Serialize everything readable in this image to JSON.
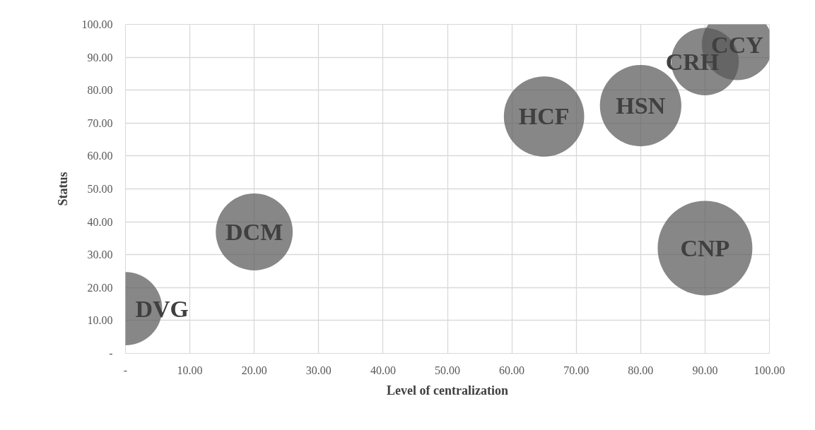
{
  "chart_data": {
    "type": "bubble",
    "xlabel": "Level of centralization",
    "ylabel": "Status",
    "x": [
      0,
      20,
      65,
      80,
      90,
      95,
      90
    ],
    "series": [
      {
        "color": "#595959",
        "values": [
          13.6,
          36.9,
          72,
          75.3,
          88.7,
          93.8,
          32
        ],
        "sizes": [
          0.6,
          0.66,
          0.72,
          0.74,
          0.51,
          0.56,
          1
        ]
      }
    ],
    "annotations": [
      {
        "text": "DVG",
        "x": 0,
        "y": 13.6
      },
      {
        "text": "DCM",
        "x": 20,
        "y": 36.9
      },
      {
        "text": "HCF",
        "x": 65,
        "y": 72
      },
      {
        "text": "HSN",
        "x": 80,
        "y": 75.3
      },
      {
        "text": "CCY",
        "x": 95,
        "y": 93.8
      },
      {
        "text": "CRH",
        "x": 90,
        "y": 88.7
      },
      {
        "text": "CNP",
        "x": 90,
        "y": 32
      }
    ],
    "xlim": [
      0,
      100
    ],
    "ylim": [
      0,
      100
    ],
    "xticks": [
      {
        "value": 0,
        "label": "-"
      },
      {
        "value": 10,
        "label": "10.00"
      },
      {
        "value": 20,
        "label": "20.00"
      },
      {
        "value": 30,
        "label": "30.00"
      },
      {
        "value": 40,
        "label": "40.00"
      },
      {
        "value": 50,
        "label": "50.00"
      },
      {
        "value": 60,
        "label": "60.00"
      },
      {
        "value": 70,
        "label": "70.00"
      },
      {
        "value": 80,
        "label": "80.00"
      },
      {
        "value": 90,
        "label": "90.00"
      },
      {
        "value": 100,
        "label": "100.00"
      }
    ],
    "yticks": [
      {
        "value": 0,
        "label": "-"
      },
      {
        "value": 10,
        "label": "10.00"
      },
      {
        "value": 20,
        "label": "20.00"
      },
      {
        "value": 30,
        "label": "30.00"
      },
      {
        "value": 40,
        "label": "40.00"
      },
      {
        "value": 50,
        "label": "50.00"
      },
      {
        "value": 60,
        "label": "60.00"
      },
      {
        "value": 70,
        "label": "70.00"
      },
      {
        "value": 80,
        "label": "80.00"
      },
      {
        "value": 90,
        "label": "90.00"
      },
      {
        "value": 100,
        "label": "100.00"
      }
    ],
    "grid": true
  }
}
